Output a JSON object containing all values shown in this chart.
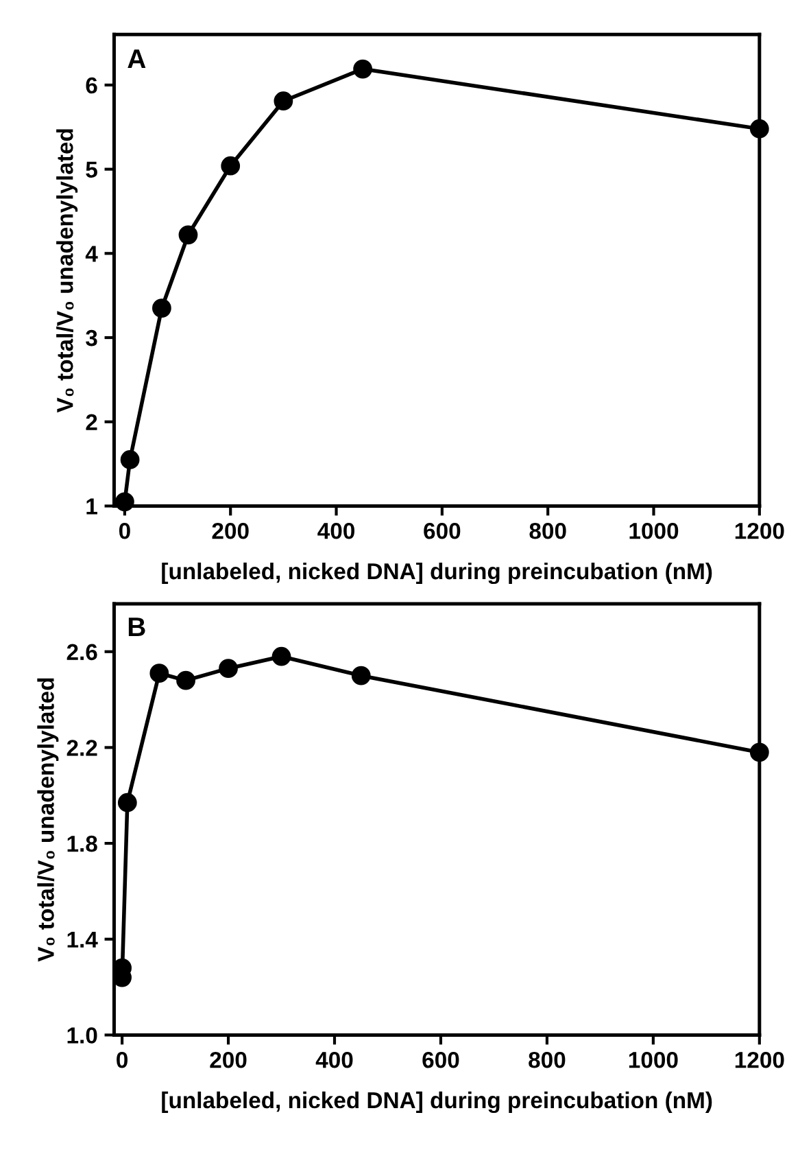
{
  "chart_data": [
    {
      "type": "line",
      "title": "A",
      "xlabel": "[unlabeled, nicked DNA] during preincubation (nM)",
      "ylabel": "V₀ total/V₀ unadenylylated",
      "series": [
        {
          "color": "#000000",
          "x": [
            0,
            10,
            70,
            120,
            200,
            300,
            450,
            1200
          ],
          "values": [
            1.05,
            1.55,
            3.35,
            4.22,
            5.04,
            5.81,
            6.19,
            5.48
          ]
        }
      ],
      "xlim": [
        -20,
        1200
      ],
      "ylim": [
        1,
        6.6
      ],
      "xticks": [
        0,
        200,
        400,
        600,
        800,
        1000,
        1200
      ],
      "yticks": [
        1,
        2,
        3,
        4,
        5,
        6
      ],
      "marker": "circle",
      "line_style": "solid",
      "grid": false,
      "legend": false
    },
    {
      "type": "line",
      "title": "B",
      "xlabel": "[unlabeled, nicked DNA] during preincubation (nM)",
      "ylabel": "V₀ total/V₀ unadenylylated",
      "series": [
        {
          "color": "#000000",
          "x": [
            0,
            0,
            10,
            70,
            120,
            200,
            300,
            450,
            1200
          ],
          "values": [
            1.28,
            1.24,
            1.97,
            2.51,
            2.48,
            2.53,
            2.58,
            2.5,
            2.18
          ]
        }
      ],
      "xlim": [
        -15,
        1200
      ],
      "ylim": [
        1.0,
        2.8
      ],
      "xticks": [
        0,
        200,
        400,
        600,
        800,
        1000,
        1200
      ],
      "yticks": [
        {
          "value": 1,
          "label": "1.0"
        },
        1.4,
        1.8,
        2.2,
        2.6
      ],
      "marker": "circle",
      "line_style": "solid",
      "grid": false,
      "legend": false
    }
  ]
}
